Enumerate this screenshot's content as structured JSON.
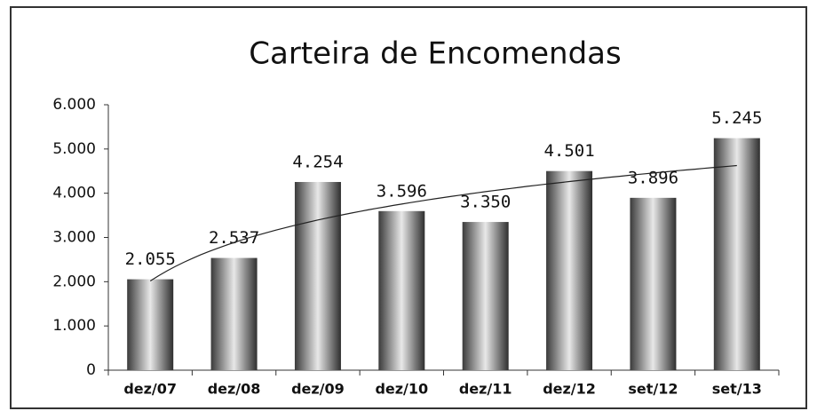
{
  "chart_data": {
    "type": "bar",
    "title": "Carteira de Encomendas",
    "categories": [
      "dez/07",
      "dez/08",
      "dez/09",
      "dez/10",
      "dez/11",
      "dez/12",
      "set/12",
      "set/13"
    ],
    "values": [
      2055,
      2537,
      4254,
      3596,
      3350,
      4501,
      3896,
      5245
    ],
    "value_labels": [
      "2.055",
      "2.537",
      "4.254",
      "3.596",
      "3.350",
      "4.501",
      "3.896",
      "5.245"
    ],
    "color": "#8a8a8a",
    "ylim": [
      0,
      6000
    ],
    "yticks": [
      0,
      {
        "value": 1000,
        "label": "1.000"
      },
      {
        "value": 2000,
        "label": "2.000"
      },
      {
        "value": 3000,
        "label": "3.000"
      },
      {
        "value": 4000,
        "label": "4.000"
      },
      {
        "value": 5000,
        "label": "5.000"
      },
      {
        "value": 6000,
        "label": "6.000"
      }
    ],
    "grid": false
  }
}
